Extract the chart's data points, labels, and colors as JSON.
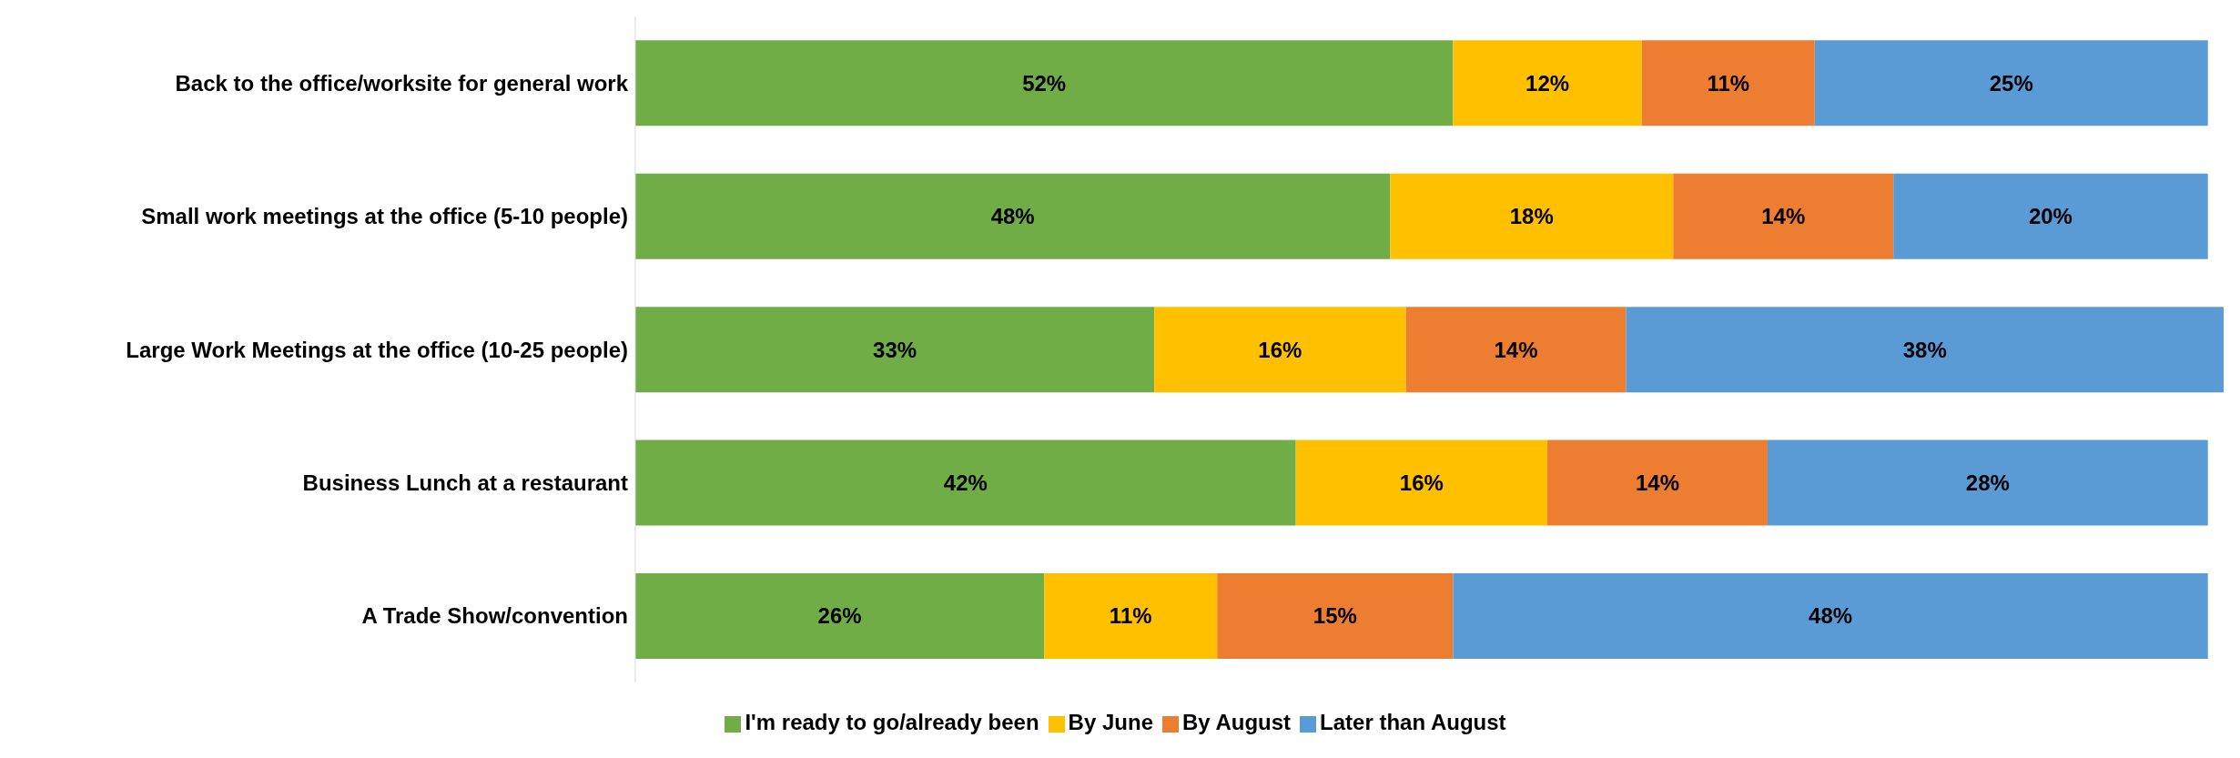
{
  "chart_data": {
    "type": "bar",
    "orientation": "horizontal",
    "stacked": true,
    "legend": "bottom",
    "grid": false,
    "categories": [
      "Back to the office/worksite for general work",
      "Small work meetings at the office (5-10 people)",
      "Large Work Meetings at the office (10-25 people)",
      "Business Lunch at a restaurant",
      "A Trade Show/convention"
    ],
    "series": [
      {
        "name": "I'm ready to go/already been",
        "color": "#70ad47",
        "values": [
          52,
          48,
          33,
          42,
          26
        ],
        "value_labels": [
          "52%",
          "48%",
          "33%",
          "42%",
          "26%"
        ]
      },
      {
        "name": "By June",
        "color": "#ffc000",
        "values": [
          12,
          18,
          16,
          16,
          11
        ],
        "value_labels": [
          "12%",
          "18%",
          "16%",
          "16%",
          "11%"
        ]
      },
      {
        "name": "By August",
        "color": "#ed7d31",
        "values": [
          11,
          14,
          14,
          14,
          15
        ],
        "value_labels": [
          "11%",
          "14%",
          "14%",
          "14%",
          "15%"
        ]
      },
      {
        "name": "Later than August",
        "color": "#5b9bd5",
        "values": [
          25,
          20,
          38,
          28,
          48
        ],
        "value_labels": [
          "25%",
          "20%",
          "38%",
          "28%",
          "48%"
        ]
      }
    ]
  }
}
